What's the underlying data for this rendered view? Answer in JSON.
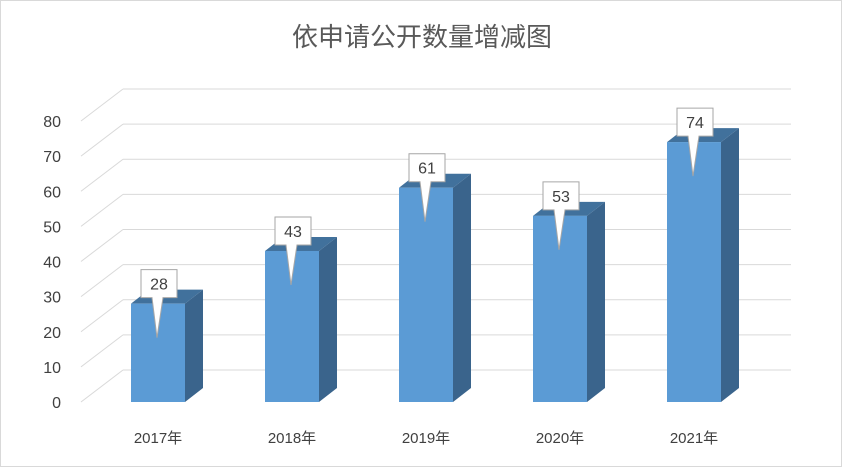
{
  "chart_data": {
    "type": "bar",
    "title": "依申请公开数量增减图",
    "categories": [
      "2017年",
      "2018年",
      "2019年",
      "2020年",
      "2021年"
    ],
    "values": [
      28,
      43,
      61,
      53,
      74
    ],
    "ylim": [
      0,
      80
    ],
    "yticks": [
      "0",
      "10",
      "20",
      "30",
      "40",
      "50",
      "60",
      "70",
      "80"
    ],
    "xlabel": "",
    "ylabel": "",
    "grid": true,
    "legend": "none",
    "colors": {
      "bar_front": "#5b9bd5",
      "bar_side": "#3a648c",
      "bar_top": "#41719c",
      "grid": "#d9d9d9"
    }
  }
}
